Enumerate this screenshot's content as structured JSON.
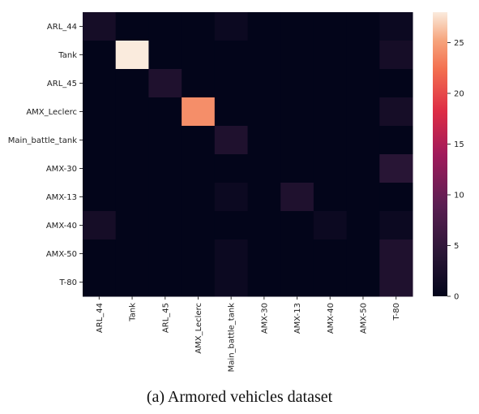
{
  "caption": "(a) Armored vehicles dataset",
  "chart_data": {
    "type": "heatmap",
    "title": "",
    "xlabel": "",
    "ylabel": "",
    "row_labels": [
      "ARL_44",
      "Tank",
      "ARL_45",
      "AMX_Leclerc",
      "Main_battle_tank",
      "AMX-30",
      "AMX-13",
      "AMX-40",
      "AMX-50",
      "T-80"
    ],
    "col_labels": [
      "ARL_44",
      "Tank",
      "ARL_45",
      "AMX_Leclerc",
      "Main_battle_tank",
      "AMX-30",
      "AMX-13",
      "AMX-40",
      "AMX-50",
      "T-80"
    ],
    "values": [
      [
        2,
        0,
        0,
        0,
        1,
        0,
        0,
        0,
        0,
        1
      ],
      [
        0,
        28,
        0,
        0,
        0,
        0,
        0,
        0,
        0,
        2
      ],
      [
        0,
        0,
        3,
        0,
        0,
        0,
        0,
        0,
        0,
        0
      ],
      [
        0,
        0,
        0,
        24,
        0,
        0,
        0,
        0,
        0,
        2
      ],
      [
        0,
        0,
        0,
        0,
        3,
        0,
        0,
        0,
        0,
        0
      ],
      [
        0,
        0,
        0,
        0,
        0,
        0,
        0,
        0,
        0,
        4
      ],
      [
        0,
        0,
        0,
        0,
        1,
        0,
        3,
        0,
        0,
        0
      ],
      [
        2,
        0,
        0,
        0,
        0,
        0,
        0,
        1,
        0,
        1
      ],
      [
        0,
        0,
        0,
        0,
        1,
        0,
        0,
        0,
        0,
        3
      ],
      [
        0,
        0,
        0,
        0,
        1,
        0,
        0,
        0,
        0,
        3
      ]
    ],
    "colorbar": {
      "min": 0,
      "max": 28,
      "ticks": [
        0,
        5,
        10,
        15,
        20,
        25
      ]
    },
    "colormap": "rocket",
    "grid": false
  }
}
